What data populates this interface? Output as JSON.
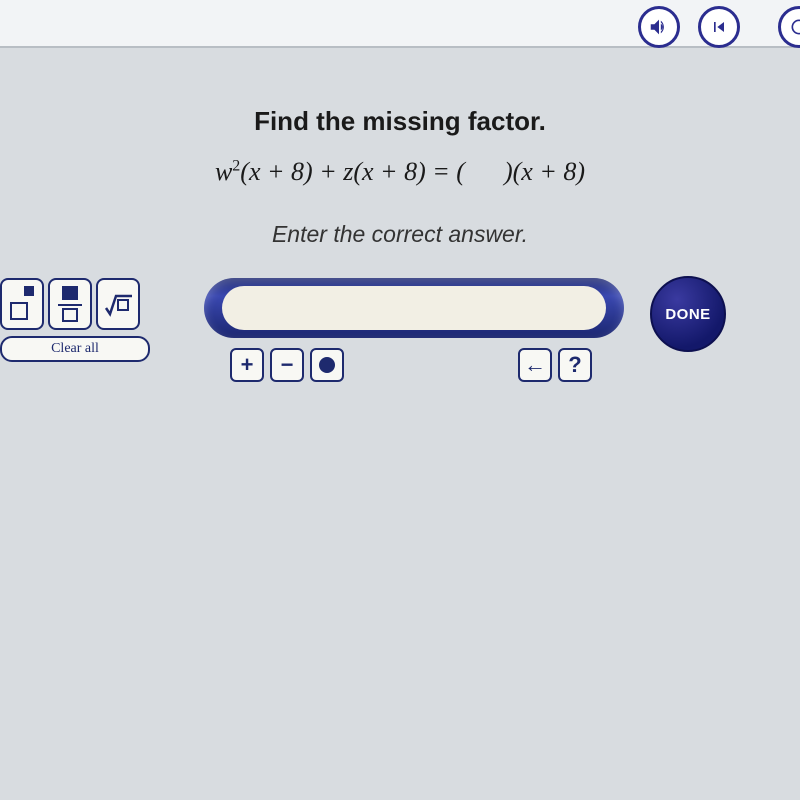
{
  "topbar": {
    "icons": [
      "sound-icon",
      "rewind-icon",
      "extra-icon"
    ],
    "border_color": "#2b2d8f"
  },
  "question": {
    "title": "Find the missing factor.",
    "math_html": "w<sup>2</sup>(x + 8) + z(x + 8) = (      )(x + 8)",
    "subtitle": "Enter the correct answer."
  },
  "palette": {
    "buttons": [
      "exponent",
      "fraction",
      "sqrt"
    ],
    "clear_label": "Clear all"
  },
  "answer": {
    "value": "",
    "placeholder": ""
  },
  "below": {
    "left": [
      "+",
      "−",
      "dot"
    ],
    "right": [
      "←",
      "?"
    ]
  },
  "done": {
    "label": "DONE"
  },
  "colors": {
    "page_bg": "#d8dce0",
    "accent": "#1e2a6e",
    "pill_dark": "#1b2670",
    "pill_light": "#3a48b0",
    "input_bg": "#f2efe4",
    "button_bg": "#f8f8f4"
  },
  "typography": {
    "title_fontsize": 26,
    "math_fontsize": 26,
    "subtitle_fontsize": 23,
    "done_fontsize": 15
  }
}
